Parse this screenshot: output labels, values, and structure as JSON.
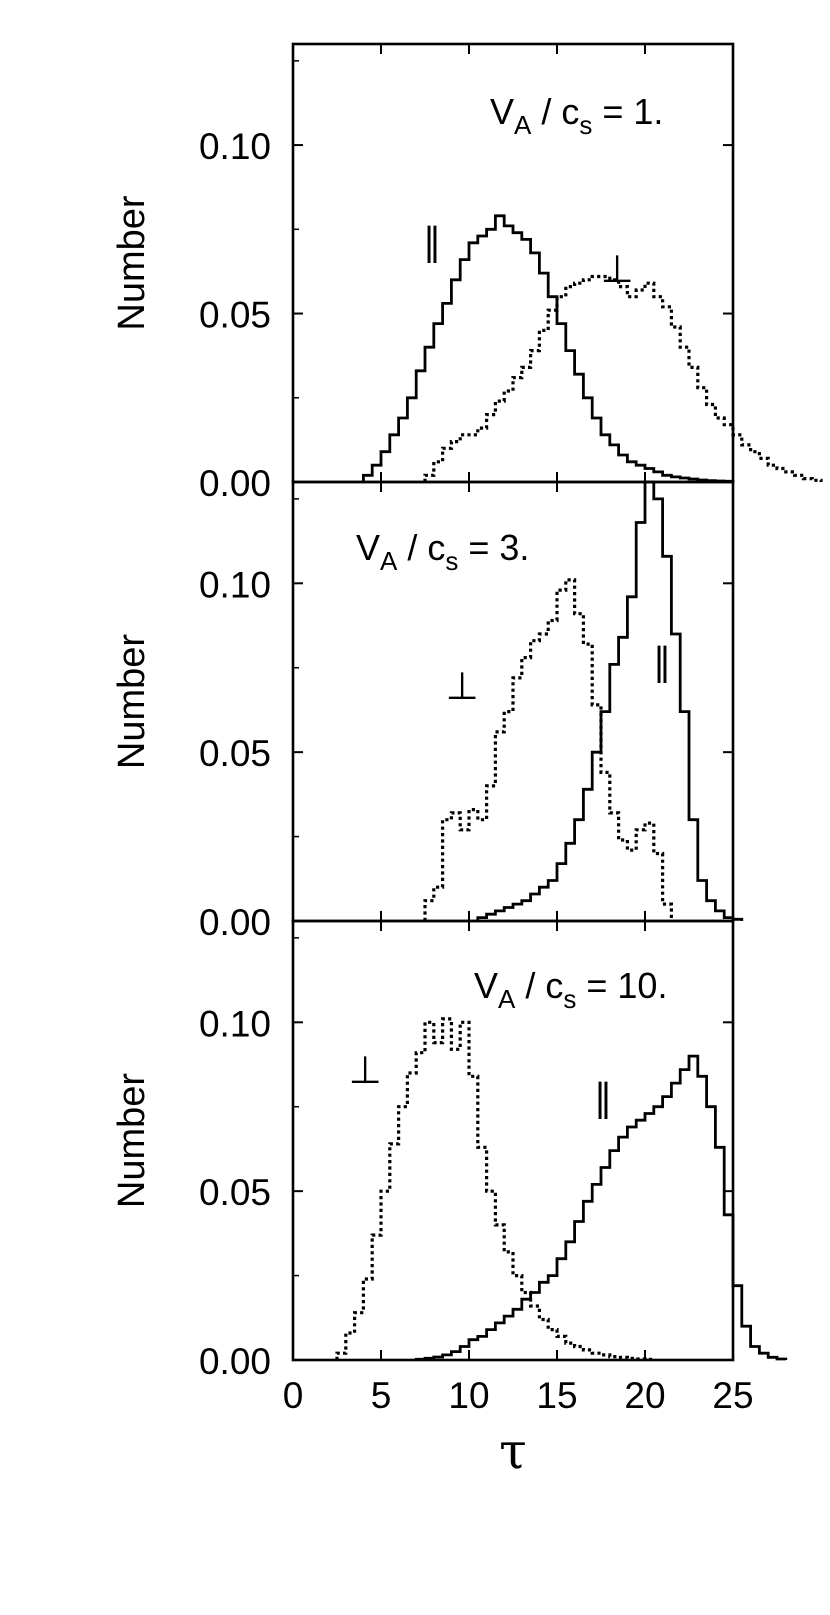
{
  "chart_data": [
    {
      "type": "histogram",
      "annotation": {
        "prefix": "V",
        "sub1": "A",
        "mid": " / c",
        "sub2": "s",
        "suffix": " = 1."
      },
      "ylabel": "Number",
      "xlim": [
        0,
        25
      ],
      "ylim": [
        0,
        0.13
      ],
      "yticks": [
        "0.00",
        "0.05",
        "0.10"
      ],
      "bin_width": 0.5,
      "series": [
        {
          "label": "∥",
          "style": "solid",
          "bin_start": 4.0,
          "values": [
            0.002,
            0.005,
            0.009,
            0.014,
            0.019,
            0.025,
            0.033,
            0.04,
            0.047,
            0.053,
            0.06,
            0.066,
            0.071,
            0.073,
            0.075,
            0.079,
            0.076,
            0.074,
            0.072,
            0.068,
            0.062,
            0.055,
            0.047,
            0.039,
            0.032,
            0.025,
            0.019,
            0.014,
            0.011,
            0.008,
            0.006,
            0.005,
            0.004,
            0.003,
            0.002,
            0.0015,
            0.0012,
            0.0009,
            0.0006,
            0.0004,
            0.0003,
            0.0002
          ]
        },
        {
          "label": "⊥",
          "style": "dotted",
          "bin_start": 7.5,
          "values": [
            0.002,
            0.006,
            0.01,
            0.012,
            0.014,
            0.014,
            0.016,
            0.02,
            0.024,
            0.027,
            0.031,
            0.034,
            0.039,
            0.045,
            0.051,
            0.055,
            0.058,
            0.059,
            0.06,
            0.061,
            0.061,
            0.06,
            0.058,
            0.055,
            0.057,
            0.059,
            0.055,
            0.052,
            0.046,
            0.04,
            0.034,
            0.028,
            0.023,
            0.019,
            0.017,
            0.014,
            0.011,
            0.009,
            0.007,
            0.005,
            0.004,
            0.003,
            0.002,
            0.001,
            0.0005
          ]
        }
      ]
    },
    {
      "type": "histogram",
      "annotation": {
        "prefix": "V",
        "sub1": "A",
        "mid": " / c",
        "sub2": "s",
        "suffix": " = 3."
      },
      "ylabel": "Number",
      "xlim": [
        0,
        25
      ],
      "ylim": [
        0,
        0.13
      ],
      "yticks": [
        "0.00",
        "0.05",
        "0.10"
      ],
      "bin_width": 0.5,
      "series": [
        {
          "label": "∥",
          "style": "solid",
          "bin_start": 10.5,
          "values": [
            0.001,
            0.002,
            0.003,
            0.004,
            0.005,
            0.006,
            0.008,
            0.01,
            0.012,
            0.017,
            0.023,
            0.03,
            0.039,
            0.05,
            0.062,
            0.076,
            0.084,
            0.096,
            0.118,
            0.133,
            0.125,
            0.108,
            0.085,
            0.062,
            0.03,
            0.012,
            0.006,
            0.003,
            0.001,
            0.0005
          ]
        },
        {
          "label": "⊥",
          "style": "dotted",
          "bin_start": 7.5,
          "values": [
            0.006,
            0.01,
            0.03,
            0.032,
            0.027,
            0.033,
            0.03,
            0.04,
            0.056,
            0.062,
            0.072,
            0.078,
            0.083,
            0.085,
            0.089,
            0.098,
            0.101,
            0.091,
            0.082,
            0.064,
            0.044,
            0.032,
            0.024,
            0.021,
            0.027,
            0.029,
            0.02,
            0.005
          ]
        }
      ]
    },
    {
      "type": "histogram",
      "annotation": {
        "prefix": "V",
        "sub1": "A",
        "mid": " / c",
        "sub2": "s",
        "suffix": " = 10."
      },
      "ylabel": "Number",
      "xlim": [
        0,
        25
      ],
      "ylim": [
        0,
        0.13
      ],
      "yticks": [
        "0.00",
        "0.05",
        "0.10"
      ],
      "xticks": [
        "0",
        "5",
        "10",
        "15",
        "20",
        "25"
      ],
      "xlabel": "τ",
      "bin_width": 0.5,
      "series": [
        {
          "label": "∥",
          "style": "solid",
          "bin_start": 7.0,
          "values": [
            0.0002,
            0.0005,
            0.0009,
            0.0015,
            0.0025,
            0.004,
            0.006,
            0.007,
            0.009,
            0.011,
            0.013,
            0.015,
            0.018,
            0.02,
            0.023,
            0.025,
            0.03,
            0.035,
            0.041,
            0.047,
            0.052,
            0.057,
            0.062,
            0.066,
            0.069,
            0.071,
            0.073,
            0.075,
            0.078,
            0.082,
            0.086,
            0.09,
            0.084,
            0.075,
            0.063,
            0.043,
            0.022,
            0.01,
            0.004,
            0.002,
            0.0008,
            0.0003
          ]
        },
        {
          "label": "⊥",
          "style": "dotted",
          "bin_start": 2.5,
          "values": [
            0.002,
            0.008,
            0.014,
            0.024,
            0.037,
            0.05,
            0.064,
            0.075,
            0.085,
            0.091,
            0.1,
            0.094,
            0.101,
            0.092,
            0.1,
            0.084,
            0.063,
            0.05,
            0.04,
            0.032,
            0.025,
            0.02,
            0.016,
            0.012,
            0.009,
            0.007,
            0.005,
            0.004,
            0.003,
            0.002,
            0.0015,
            0.001,
            0.0008,
            0.0005,
            0.0003,
            0.0002
          ]
        }
      ]
    }
  ]
}
